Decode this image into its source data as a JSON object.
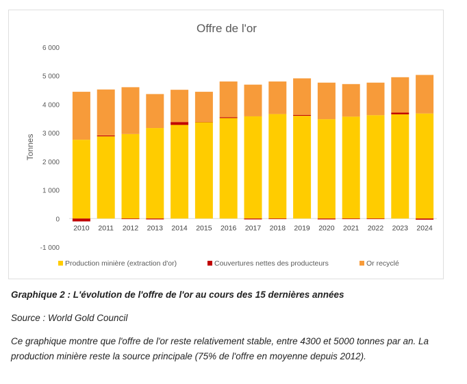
{
  "chart_data": {
    "type": "bar",
    "stacked": true,
    "title": "Offre de l'or",
    "ylabel": "Tonnes",
    "xlabel": "",
    "ylim": [
      -1000,
      6000
    ],
    "yticks": [
      6000,
      5000,
      4000,
      3000,
      2000,
      1000,
      0,
      -1000
    ],
    "ytick_labels": [
      "6 000",
      "5 000",
      "4 000",
      "3 000",
      "2 000",
      "1 000",
      "0",
      "-1 000"
    ],
    "grid": false,
    "legend_position": "bottom",
    "categories": [
      "2010",
      "2011",
      "2012",
      "2013",
      "2014",
      "2015",
      "2016",
      "2017",
      "2018",
      "2019",
      "2020",
      "2021",
      "2022",
      "2023",
      "2024"
    ],
    "series": [
      {
        "name": "Production minière (extraction d'or)",
        "color": "#FFCC00",
        "values": [
          2760,
          2880,
          2960,
          3170,
          3280,
          3380,
          3520,
          3580,
          3660,
          3600,
          3480,
          3570,
          3620,
          3650,
          3680
        ]
      },
      {
        "name": "Couvertures nettes des producteurs",
        "color": "#C00000",
        "values": [
          -100,
          30,
          -20,
          -30,
          100,
          10,
          30,
          -30,
          -20,
          30,
          -30,
          -20,
          -20,
          60,
          -40
        ]
      },
      {
        "name": "Or recyclé",
        "color": "#F79B3A",
        "values": [
          1680,
          1610,
          1640,
          1190,
          1130,
          1050,
          1250,
          1110,
          1140,
          1280,
          1280,
          1140,
          1140,
          1240,
          1350
        ]
      }
    ]
  },
  "caption": {
    "title": "Graphique 2 : L'évolution de l'offre de l'or au cours des 15 dernières années",
    "source": "Source : World Gold Council",
    "description": "Ce graphique montre que l'offre de l'or reste relativement stable, entre 4300 et 5000 tonnes par an. La production minière reste la source principale (75% de l'offre en moyenne depuis 2012)."
  }
}
